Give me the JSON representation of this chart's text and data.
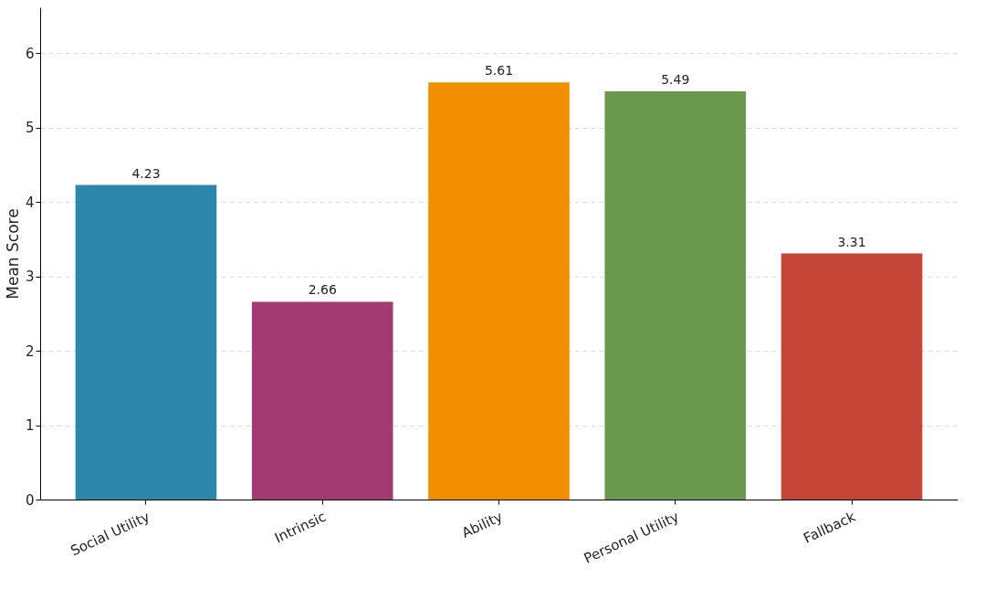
{
  "chart_data": {
    "type": "bar",
    "ylabel": "Mean Score",
    "categories": [
      "Social Utility",
      "Intrinsic",
      "Ability",
      "Personal Utility",
      "Fallback"
    ],
    "values": [
      4.23,
      2.66,
      5.61,
      5.49,
      3.31
    ],
    "colors": [
      "#2e86ab",
      "#a23b72",
      "#f18f01",
      "#6a994e",
      "#c44536"
    ],
    "ylim": [
      0,
      6.62
    ],
    "yticks": [
      0,
      1,
      2,
      3,
      4,
      5,
      6
    ],
    "grid": "y",
    "data_labels": true
  }
}
